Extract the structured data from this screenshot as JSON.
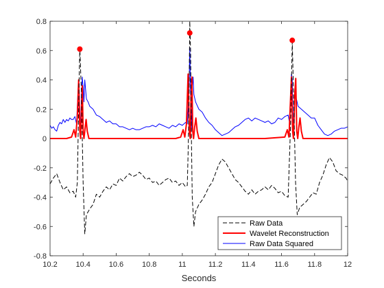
{
  "chart_data": {
    "type": "line",
    "title": "",
    "xlabel": "Seconds",
    "ylabel": "",
    "xlim": [
      10.2,
      12
    ],
    "ylim": [
      -0.8,
      0.8
    ],
    "xticks": [
      "10.2",
      "10.4",
      "10.6",
      "10.8",
      "11",
      "11.2",
      "11.4",
      "11.6",
      "11.8",
      "12"
    ],
    "yticks": [
      "-0.8",
      "-0.6",
      "-0.4",
      "-0.2",
      "0",
      "0.2",
      "0.4",
      "0.6",
      "0.8"
    ],
    "grid": false,
    "legend_position": "bottom-right",
    "series": [
      {
        "name": "Raw Data",
        "color": "#000000",
        "style": "dashed",
        "points": [
          [
            10.2,
            -0.31
          ],
          [
            10.22,
            -0.27
          ],
          [
            10.24,
            -0.24
          ],
          [
            10.26,
            -0.3
          ],
          [
            10.28,
            -0.35
          ],
          [
            10.3,
            -0.33
          ],
          [
            10.32,
            -0.37
          ],
          [
            10.34,
            -0.36
          ],
          [
            10.355,
            -0.4
          ],
          [
            10.365,
            -0.3
          ],
          [
            10.375,
            0.35
          ],
          [
            10.38,
            0.62
          ],
          [
            10.39,
            0.3
          ],
          [
            10.4,
            -0.3
          ],
          [
            10.41,
            -0.65
          ],
          [
            10.42,
            -0.52
          ],
          [
            10.44,
            -0.48
          ],
          [
            10.46,
            -0.45
          ],
          [
            10.48,
            -0.38
          ],
          [
            10.5,
            -0.4
          ],
          [
            10.52,
            -0.36
          ],
          [
            10.54,
            -0.33
          ],
          [
            10.56,
            -0.35
          ],
          [
            10.58,
            -0.31
          ],
          [
            10.6,
            -0.32
          ],
          [
            10.62,
            -0.27
          ],
          [
            10.64,
            -0.29
          ],
          [
            10.66,
            -0.26
          ],
          [
            10.68,
            -0.24
          ],
          [
            10.7,
            -0.26
          ],
          [
            10.72,
            -0.25
          ],
          [
            10.74,
            -0.23
          ],
          [
            10.76,
            -0.25
          ],
          [
            10.78,
            -0.28
          ],
          [
            10.8,
            -0.27
          ],
          [
            10.82,
            -0.3
          ],
          [
            10.84,
            -0.29
          ],
          [
            10.86,
            -0.32
          ],
          [
            10.88,
            -0.3
          ],
          [
            10.9,
            -0.28
          ],
          [
            10.92,
            -0.27
          ],
          [
            10.94,
            -0.3
          ],
          [
            10.96,
            -0.29
          ],
          [
            10.98,
            -0.32
          ],
          [
            11.0,
            -0.3
          ],
          [
            11.02,
            -0.33
          ],
          [
            11.03,
            -0.32
          ],
          [
            11.035,
            -0.1
          ],
          [
            11.04,
            0.2
          ],
          [
            11.045,
            0.8
          ],
          [
            11.05,
            0.6
          ],
          [
            11.055,
            0.0
          ],
          [
            11.06,
            -0.4
          ],
          [
            11.07,
            -0.6
          ],
          [
            11.08,
            -0.5
          ],
          [
            11.1,
            -0.45
          ],
          [
            11.12,
            -0.42
          ],
          [
            11.14,
            -0.38
          ],
          [
            11.16,
            -0.33
          ],
          [
            11.18,
            -0.3
          ],
          [
            11.2,
            -0.24
          ],
          [
            11.22,
            -0.18
          ],
          [
            11.24,
            -0.14
          ],
          [
            11.26,
            -0.16
          ],
          [
            11.28,
            -0.2
          ],
          [
            11.3,
            -0.24
          ],
          [
            11.32,
            -0.28
          ],
          [
            11.34,
            -0.3
          ],
          [
            11.36,
            -0.33
          ],
          [
            11.38,
            -0.36
          ],
          [
            11.4,
            -0.38
          ],
          [
            11.42,
            -0.35
          ],
          [
            11.44,
            -0.38
          ],
          [
            11.46,
            -0.36
          ],
          [
            11.48,
            -0.35
          ],
          [
            11.5,
            -0.33
          ],
          [
            11.52,
            -0.35
          ],
          [
            11.54,
            -0.32
          ],
          [
            11.56,
            -0.34
          ],
          [
            11.58,
            -0.37
          ],
          [
            11.6,
            -0.36
          ],
          [
            11.62,
            -0.39
          ],
          [
            11.64,
            -0.4
          ],
          [
            11.655,
            0.1
          ],
          [
            11.665,
            0.66
          ],
          [
            11.675,
            0.2
          ],
          [
            11.685,
            -0.3
          ],
          [
            11.695,
            -0.52
          ],
          [
            11.71,
            -0.47
          ],
          [
            11.73,
            -0.45
          ],
          [
            11.75,
            -0.43
          ],
          [
            11.77,
            -0.4
          ],
          [
            11.79,
            -0.37
          ],
          [
            11.81,
            -0.38
          ],
          [
            11.83,
            -0.3
          ],
          [
            11.85,
            -0.25
          ],
          [
            11.87,
            -0.18
          ],
          [
            11.89,
            -0.13
          ],
          [
            11.91,
            -0.16
          ],
          [
            11.93,
            -0.22
          ],
          [
            11.95,
            -0.24
          ],
          [
            11.97,
            -0.25
          ],
          [
            11.99,
            -0.27
          ],
          [
            12.0,
            -0.29
          ]
        ]
      },
      {
        "name": "Wavelet Reconstruction",
        "color": "#ff0000",
        "style": "solid",
        "points": [
          [
            10.2,
            0.0
          ],
          [
            10.3,
            0.0
          ],
          [
            10.33,
            0.01
          ],
          [
            10.345,
            0.06
          ],
          [
            10.355,
            0.01
          ],
          [
            10.365,
            0.15
          ],
          [
            10.373,
            0.4
          ],
          [
            10.38,
            0.05
          ],
          [
            10.385,
            0.0
          ],
          [
            10.39,
            0.2
          ],
          [
            10.395,
            0.36
          ],
          [
            10.4,
            0.05
          ],
          [
            10.405,
            0.0
          ],
          [
            10.41,
            0.05
          ],
          [
            10.418,
            0.13
          ],
          [
            10.425,
            0.05
          ],
          [
            10.435,
            0.0
          ],
          [
            10.5,
            0.0
          ],
          [
            10.96,
            0.0
          ],
          [
            10.99,
            0.01
          ],
          [
            11.005,
            0.06
          ],
          [
            11.015,
            0.01
          ],
          [
            11.025,
            0.1
          ],
          [
            11.035,
            0.44
          ],
          [
            11.042,
            0.05
          ],
          [
            11.048,
            0.0
          ],
          [
            11.053,
            0.3
          ],
          [
            11.058,
            0.42
          ],
          [
            11.063,
            0.05
          ],
          [
            11.068,
            0.0
          ],
          [
            11.075,
            0.08
          ],
          [
            11.082,
            0.14
          ],
          [
            11.09,
            0.05
          ],
          [
            11.1,
            0.0
          ],
          [
            11.5,
            0.0
          ],
          [
            11.62,
            0.01
          ],
          [
            11.635,
            0.06
          ],
          [
            11.645,
            0.01
          ],
          [
            11.652,
            0.2
          ],
          [
            11.66,
            0.42
          ],
          [
            11.667,
            0.05
          ],
          [
            11.672,
            0.0
          ],
          [
            11.68,
            0.3
          ],
          [
            11.686,
            0.41
          ],
          [
            11.692,
            0.05
          ],
          [
            11.698,
            0.0
          ],
          [
            11.705,
            0.08
          ],
          [
            11.712,
            0.14
          ],
          [
            11.72,
            0.05
          ],
          [
            11.73,
            0.0
          ],
          [
            12.0,
            0.0
          ]
        ]
      },
      {
        "name": "Raw Data Squared",
        "color": "#0000ff",
        "style": "solid",
        "points": [
          [
            10.2,
            0.09
          ],
          [
            10.21,
            0.07
          ],
          [
            10.22,
            0.08
          ],
          [
            10.23,
            0.06
          ],
          [
            10.24,
            0.05
          ],
          [
            10.25,
            0.09
          ],
          [
            10.26,
            0.11
          ],
          [
            10.27,
            0.1
          ],
          [
            10.28,
            0.13
          ],
          [
            10.29,
            0.11
          ],
          [
            10.3,
            0.13
          ],
          [
            10.31,
            0.12
          ],
          [
            10.32,
            0.14
          ],
          [
            10.33,
            0.13
          ],
          [
            10.34,
            0.13
          ],
          [
            10.35,
            0.15
          ],
          [
            10.36,
            0.1
          ],
          [
            10.37,
            0.35
          ],
          [
            10.375,
            0.38
          ],
          [
            10.38,
            0.2
          ],
          [
            10.385,
            0.05
          ],
          [
            10.39,
            0.3
          ],
          [
            10.395,
            0.42
          ],
          [
            10.4,
            0.35
          ],
          [
            10.405,
            0.25
          ],
          [
            10.41,
            0.4
          ],
          [
            10.42,
            0.27
          ],
          [
            10.43,
            0.25
          ],
          [
            10.44,
            0.22
          ],
          [
            10.46,
            0.2
          ],
          [
            10.48,
            0.16
          ],
          [
            10.5,
            0.15
          ],
          [
            10.52,
            0.13
          ],
          [
            10.54,
            0.11
          ],
          [
            10.56,
            0.12
          ],
          [
            10.58,
            0.1
          ],
          [
            10.6,
            0.1
          ],
          [
            10.62,
            0.08
          ],
          [
            10.64,
            0.08
          ],
          [
            10.66,
            0.07
          ],
          [
            10.68,
            0.06
          ],
          [
            10.7,
            0.07
          ],
          [
            10.72,
            0.06
          ],
          [
            10.74,
            0.06
          ],
          [
            10.76,
            0.07
          ],
          [
            10.78,
            0.08
          ],
          [
            10.8,
            0.08
          ],
          [
            10.82,
            0.09
          ],
          [
            10.84,
            0.08
          ],
          [
            10.86,
            0.1
          ],
          [
            10.88,
            0.09
          ],
          [
            10.9,
            0.08
          ],
          [
            10.92,
            0.07
          ],
          [
            10.94,
            0.09
          ],
          [
            10.96,
            0.08
          ],
          [
            10.98,
            0.1
          ],
          [
            11.0,
            0.09
          ],
          [
            11.02,
            0.11
          ],
          [
            11.03,
            0.1
          ],
          [
            11.04,
            0.3
          ],
          [
            11.045,
            0.62
          ],
          [
            11.05,
            0.3
          ],
          [
            11.055,
            0.05
          ],
          [
            11.06,
            0.35
          ],
          [
            11.065,
            0.42
          ],
          [
            11.07,
            0.3
          ],
          [
            11.08,
            0.25
          ],
          [
            11.1,
            0.2
          ],
          [
            11.12,
            0.18
          ],
          [
            11.14,
            0.14
          ],
          [
            11.16,
            0.11
          ],
          [
            11.18,
            0.09
          ],
          [
            11.2,
            0.06
          ],
          [
            11.22,
            0.04
          ],
          [
            11.24,
            0.02
          ],
          [
            11.26,
            0.03
          ],
          [
            11.28,
            0.04
          ],
          [
            11.3,
            0.06
          ],
          [
            11.32,
            0.08
          ],
          [
            11.34,
            0.09
          ],
          [
            11.36,
            0.11
          ],
          [
            11.38,
            0.13
          ],
          [
            11.4,
            0.14
          ],
          [
            11.42,
            0.12
          ],
          [
            11.44,
            0.14
          ],
          [
            11.46,
            0.13
          ],
          [
            11.48,
            0.12
          ],
          [
            11.5,
            0.11
          ],
          [
            11.52,
            0.12
          ],
          [
            11.54,
            0.1
          ],
          [
            11.56,
            0.11
          ],
          [
            11.58,
            0.14
          ],
          [
            11.6,
            0.13
          ],
          [
            11.62,
            0.15
          ],
          [
            11.64,
            0.16
          ],
          [
            11.65,
            0.1
          ],
          [
            11.66,
            0.44
          ],
          [
            11.665,
            0.4
          ],
          [
            11.67,
            0.1
          ],
          [
            11.675,
            0.05
          ],
          [
            11.68,
            0.28
          ],
          [
            11.69,
            0.27
          ],
          [
            11.7,
            0.22
          ],
          [
            11.72,
            0.2
          ],
          [
            11.74,
            0.18
          ],
          [
            11.76,
            0.16
          ],
          [
            11.78,
            0.14
          ],
          [
            11.8,
            0.14
          ],
          [
            11.82,
            0.09
          ],
          [
            11.84,
            0.06
          ],
          [
            11.86,
            0.03
          ],
          [
            11.88,
            0.02
          ],
          [
            11.9,
            0.03
          ],
          [
            11.92,
            0.05
          ],
          [
            11.94,
            0.06
          ],
          [
            11.96,
            0.07
          ],
          [
            11.98,
            0.07
          ],
          [
            12.0,
            0.08
          ]
        ]
      }
    ],
    "markers": {
      "color": "#ff0000",
      "points": [
        [
          10.38,
          0.61
        ],
        [
          11.045,
          0.72
        ],
        [
          11.665,
          0.67
        ]
      ]
    }
  }
}
